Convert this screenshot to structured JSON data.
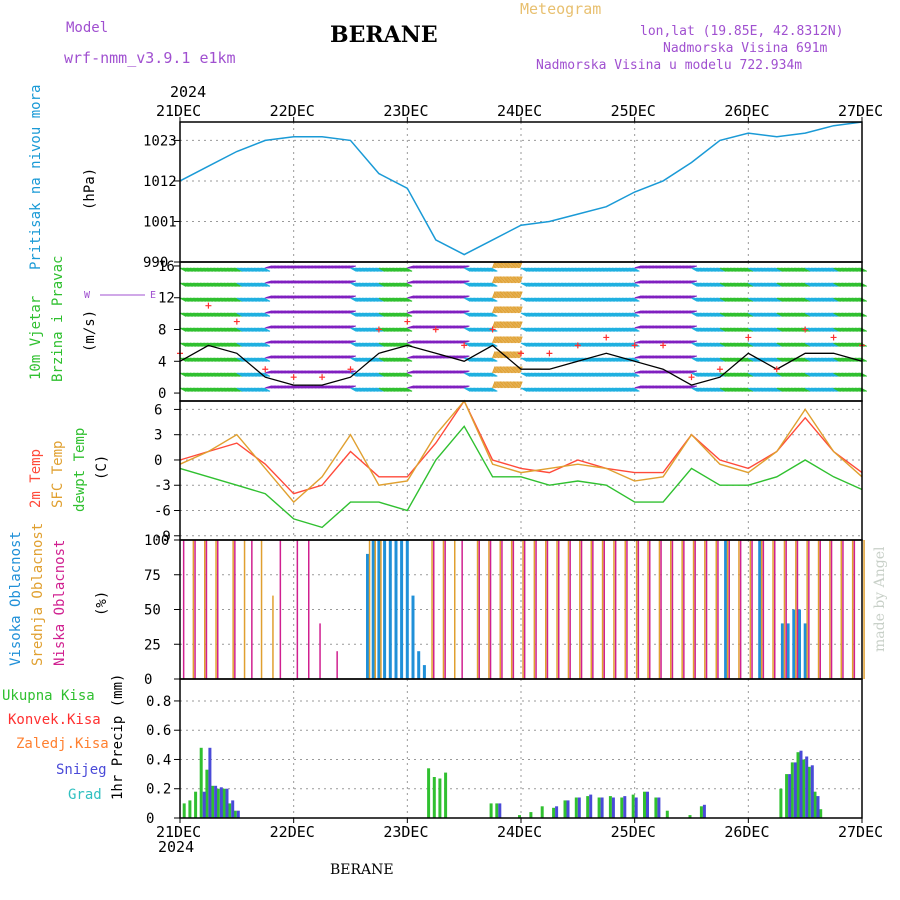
{
  "header": {
    "model_label": "Model",
    "model_name": "wrf-nmm_v3.9.1 e1km",
    "station": "BERANE",
    "meteogram": "Meteogram",
    "lonlat": "lon,lat (19.85E, 42.8312N)",
    "elev": "Nadmorska Visina 691m",
    "elev_model": "Nadmorska Visina u modelu 722.934m",
    "credit": "made by Angel",
    "footer_station": "BERANE"
  },
  "time_axis": {
    "year": "2024",
    "ticks": [
      "21DEC",
      "22DEC",
      "23DEC",
      "24DEC",
      "25DEC",
      "26DEC",
      "27DEC"
    ]
  },
  "panels": {
    "pressure": {
      "title": "Pritisak na nivou mora",
      "unit": "(hPa)"
    },
    "wind": {
      "title1": "10m Vjetar",
      "title2": "Brzina i Pravac",
      "unit": "(m/s)",
      "compass_w": "W",
      "compass_e": "E"
    },
    "temp": {
      "title1": "2m Temp",
      "title2": "SFC Temp",
      "title3": "dewpt Temp",
      "unit": "(C)"
    },
    "cloud": {
      "title1": "Visoka Oblacnost",
      "title2": "Srednja Oblacnost",
      "title3": "Niska Oblacnost",
      "unit": "(%)"
    },
    "precip": {
      "unit": "1hr Precip (mm)",
      "legend": [
        "Ukupna Kisa",
        "Konvek.Kisa",
        "Zaledj.Kisa",
        "Snijeg",
        "Grad"
      ]
    }
  },
  "colors": {
    "pressure": "#1a9ad6",
    "wind_speed": "#000000",
    "gust": "#ff3030",
    "t2m": "#ff4a3a",
    "sfc": "#e0a030",
    "dewpt": "#30c030",
    "cloud_high": "#2090d8",
    "cloud_mid": "#e0a030",
    "cloud_low": "#d02090",
    "rain_total": "#30c030",
    "rain_conv": "#ff3030",
    "freezing": "#ff8030",
    "snow": "#4a4ad8",
    "hail": "#30c0c0",
    "title_purple": "#a050d0"
  },
  "chart_data": [
    {
      "type": "line",
      "name": "pressure",
      "x_days": [
        0,
        0.25,
        0.5,
        0.75,
        1,
        1.25,
        1.5,
        1.75,
        2,
        2.25,
        2.5,
        2.75,
        3,
        3.25,
        3.5,
        3.75,
        4,
        4.25,
        4.5,
        4.75,
        5,
        5.25,
        5.5,
        5.75,
        6
      ],
      "y": [
        1012,
        1016,
        1020,
        1023,
        1024,
        1024,
        1023,
        1014,
        1010,
        996,
        992,
        996,
        1000,
        1001,
        1003,
        1005,
        1009,
        1012,
        1017,
        1023,
        1025,
        1024,
        1025,
        1027,
        1028
      ],
      "ylim": [
        990,
        1028
      ],
      "yticks": [
        990,
        1001,
        1012,
        1023
      ]
    },
    {
      "type": "line",
      "name": "wind",
      "ylim": [
        -1,
        16.5
      ],
      "yticks": [
        0,
        4,
        8,
        12,
        16
      ],
      "speed_x": [
        0,
        0.25,
        0.5,
        0.75,
        1,
        1.25,
        1.5,
        1.75,
        2,
        2.25,
        2.5,
        2.75,
        3,
        3.25,
        3.5,
        3.75,
        4,
        4.25,
        4.5,
        4.75,
        5,
        5.25,
        5.5,
        5.75,
        6
      ],
      "speed": [
        4,
        6,
        5,
        2,
        1,
        1,
        2,
        5,
        6,
        5,
        4,
        6,
        3,
        3,
        4,
        5,
        4,
        3,
        1,
        2,
        5,
        3,
        5,
        5,
        4
      ],
      "gust": [
        5,
        11,
        9,
        3,
        2,
        2,
        3,
        8,
        9,
        8,
        6,
        8,
        5,
        5,
        6,
        7,
        6,
        6,
        2,
        3,
        7,
        3,
        8,
        7,
        6
      ]
    },
    {
      "type": "line",
      "name": "temperature",
      "ylim": [
        -9.5,
        7
      ],
      "yticks": [
        -9,
        -6,
        -3,
        0,
        3,
        6
      ],
      "x_days": [
        0,
        0.25,
        0.5,
        0.75,
        1,
        1.25,
        1.5,
        1.75,
        2,
        2.25,
        2.5,
        2.75,
        3,
        3.25,
        3.5,
        3.75,
        4,
        4.25,
        4.5,
        4.75,
        5,
        5.25,
        5.5,
        5.75,
        6
      ],
      "t2m": [
        0,
        1,
        2,
        -0.5,
        -4,
        -3,
        1,
        -2,
        -2,
        2,
        7,
        0,
        -1,
        -1.5,
        0,
        -1,
        -1.5,
        -1.5,
        3,
        0,
        -1,
        1,
        5,
        1,
        -1.5
      ],
      "sfc": [
        -0.5,
        1,
        3,
        -1,
        -5,
        -2,
        3,
        -3,
        -2.5,
        3,
        7,
        -0.5,
        -1.5,
        -1,
        -0.5,
        -1,
        -2.5,
        -2,
        3,
        -0.5,
        -1.5,
        1,
        6,
        1,
        -2
      ],
      "dewpt": [
        -1,
        -2,
        -3,
        -4,
        -7,
        -8,
        -5,
        -5,
        -6,
        0,
        4,
        -2,
        -2,
        -3,
        -2.5,
        -3,
        -5,
        -5,
        -1,
        -3,
        -3,
        -2,
        0,
        -2,
        -3.5
      ]
    },
    {
      "type": "bar",
      "name": "cloud_cover",
      "ylim": [
        0,
        100
      ],
      "yticks": [
        0,
        25,
        50,
        75,
        100
      ],
      "series": [
        {
          "name": "Visoka Oblacnost",
          "x_days": [
            1.65,
            1.7,
            1.75,
            1.8,
            1.85,
            1.9,
            1.95,
            2.0,
            2.05,
            2.1,
            2.15,
            4.8,
            5.1,
            5.3,
            5.35,
            5.4,
            5.45,
            5.5
          ],
          "values": [
            90,
            100,
            100,
            100,
            100,
            100,
            100,
            100,
            60,
            20,
            10,
            100,
            100,
            40,
            40,
            50,
            50,
            40
          ]
        },
        {
          "name": "Srednja Oblacnost",
          "x_days": [
            0.1,
            0.2,
            0.3,
            0.45,
            0.55,
            0.7,
            0.8,
            1.65,
            1.7,
            1.75,
            2.2,
            2.3,
            2.4,
            2.6,
            2.7,
            2.8,
            2.9,
            3.0,
            3.1,
            3.2,
            3.3,
            3.4,
            3.5,
            3.6,
            3.7,
            3.8,
            3.9,
            4.0,
            4.1,
            4.2,
            4.3,
            4.4,
            4.5,
            4.6,
            4.7,
            4.8,
            4.9,
            5.0,
            5.1,
            5.2,
            5.3,
            5.4,
            5.5,
            5.6,
            5.7,
            5.8,
            5.9,
            6.0
          ],
          "values": [
            100,
            100,
            100,
            100,
            100,
            100,
            60,
            100,
            100,
            100,
            100,
            100,
            100,
            100,
            100,
            100,
            100,
            100,
            100,
            100,
            100,
            100,
            100,
            100,
            100,
            100,
            100,
            100,
            100,
            100,
            100,
            100,
            100,
            100,
            100,
            100,
            100,
            100,
            100,
            100,
            100,
            100,
            100,
            100,
            100,
            100,
            100,
            100
          ]
        },
        {
          "name": "Niska Oblacnost",
          "x_days": [
            0.05,
            0.15,
            0.25,
            0.35,
            0.5,
            0.65,
            0.9,
            1.05,
            1.15,
            1.25,
            1.4,
            2.25,
            2.35,
            2.5,
            2.65,
            2.75,
            2.85,
            2.95,
            3.05,
            3.15,
            3.25,
            3.35,
            3.45,
            3.55,
            3.65,
            3.75,
            3.85,
            3.95,
            4.05,
            4.15,
            4.25,
            4.35,
            4.45,
            4.55,
            4.65,
            4.75,
            4.85,
            4.95,
            5.05,
            5.15,
            5.25,
            5.35,
            5.45,
            5.55,
            5.65,
            5.75,
            5.85,
            5.95
          ],
          "values": [
            100,
            100,
            100,
            100,
            100,
            100,
            100,
            100,
            100,
            40,
            20,
            100,
            100,
            100,
            100,
            100,
            100,
            100,
            100,
            100,
            100,
            100,
            100,
            100,
            100,
            100,
            100,
            100,
            100,
            100,
            100,
            100,
            100,
            100,
            100,
            100,
            100,
            100,
            100,
            100,
            100,
            100,
            100,
            100,
            100,
            100,
            100,
            100
          ]
        }
      ]
    },
    {
      "type": "bar",
      "name": "precip",
      "ylim": [
        0,
        0.95
      ],
      "yticks": [
        0,
        0.2,
        0.4,
        0.6,
        0.8
      ],
      "series": [
        {
          "name": "Ukupna Kisa",
          "x_days": [
            0.05,
            0.1,
            0.15,
            0.2,
            0.25,
            0.3,
            0.35,
            0.4,
            0.45,
            0.5,
            2.2,
            2.25,
            2.3,
            2.35,
            2.75,
            2.8,
            3.0,
            3.1,
            3.2,
            3.3,
            3.4,
            3.5,
            3.6,
            3.7,
            3.8,
            3.9,
            4.0,
            4.1,
            4.2,
            4.3,
            4.5,
            4.6,
            5.3,
            5.35,
            5.4,
            5.45,
            5.5,
            5.55,
            5.6,
            5.65
          ],
          "values": [
            0.1,
            0.12,
            0.18,
            0.48,
            0.33,
            0.22,
            0.2,
            0.2,
            0.1,
            0.05,
            0.34,
            0.28,
            0.27,
            0.31,
            0.1,
            0.1,
            0.02,
            0.04,
            0.08,
            0.07,
            0.12,
            0.14,
            0.15,
            0.14,
            0.15,
            0.14,
            0.16,
            0.18,
            0.14,
            0.05,
            0.02,
            0.08,
            0.2,
            0.3,
            0.38,
            0.45,
            0.4,
            0.35,
            0.18,
            0.06
          ]
        },
        {
          "name": "Snijeg",
          "x_days": [
            0.2,
            0.25,
            0.3,
            0.35,
            0.4,
            0.45,
            0.5,
            2.8,
            3.3,
            3.4,
            3.5,
            3.6,
            3.7,
            3.8,
            3.9,
            4.0,
            4.1,
            4.2,
            4.6,
            5.35,
            5.4,
            5.45,
            5.5,
            5.55,
            5.6
          ],
          "values": [
            0.18,
            0.48,
            0.22,
            0.21,
            0.2,
            0.12,
            0.05,
            0.1,
            0.08,
            0.12,
            0.14,
            0.16,
            0.14,
            0.14,
            0.15,
            0.14,
            0.18,
            0.14,
            0.09,
            0.3,
            0.38,
            0.46,
            0.42,
            0.36,
            0.15
          ]
        }
      ]
    }
  ]
}
